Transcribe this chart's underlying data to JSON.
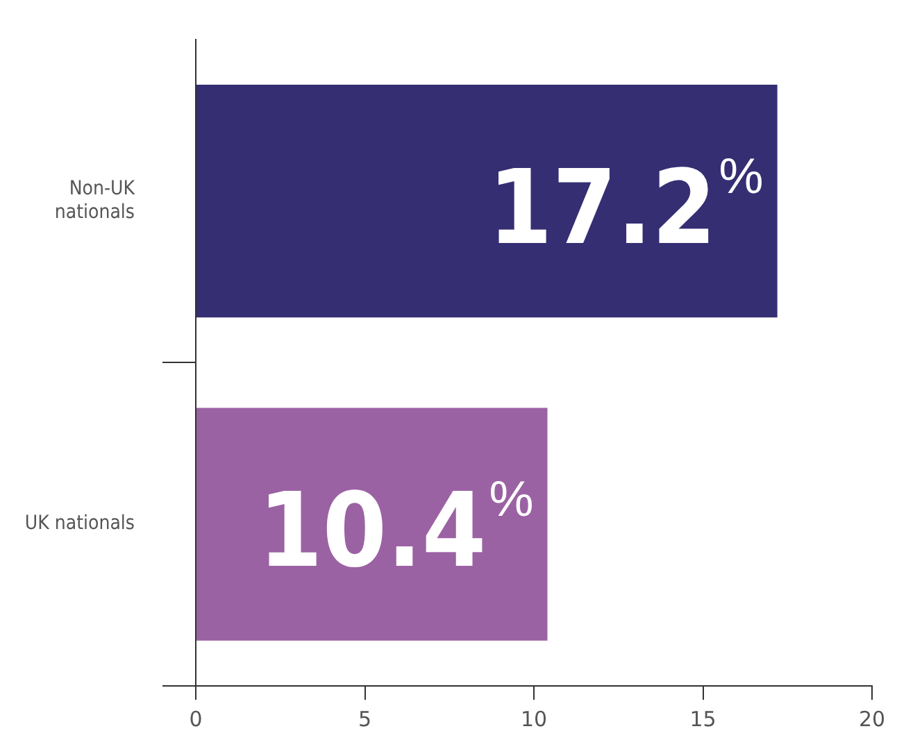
{
  "chart_data": {
    "type": "bar",
    "orientation": "horizontal",
    "categories": [
      "Non-UK nationals",
      "UK nationals"
    ],
    "values": [
      17.2,
      10.4
    ],
    "colors": [
      "#352e73",
      "#9b62a3"
    ],
    "value_labels": [
      "17.2%",
      "10.4%"
    ],
    "xlim": [
      0,
      20
    ],
    "xticks": [
      0,
      5,
      10,
      15,
      20
    ],
    "grid": false,
    "legend": false
  }
}
